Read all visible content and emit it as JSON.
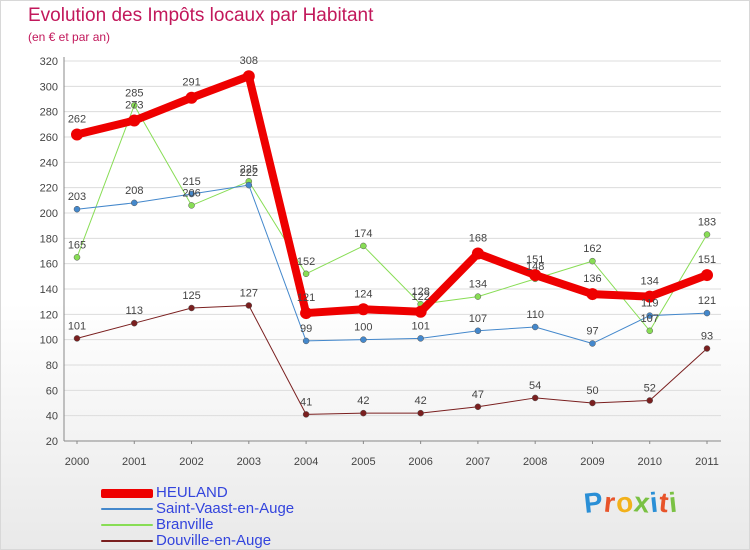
{
  "header": {
    "title": "Evolution des Impôts locaux par Habitant",
    "subtitle": "(en € et par an)"
  },
  "logo": {
    "letters": [
      "P",
      "r",
      "o",
      "x",
      "i",
      "t",
      "i"
    ],
    "colors": [
      "#2a8fd6",
      "#e8542a",
      "#f2b11b",
      "#7ac143",
      "#2a8fd6",
      "#e8542a",
      "#7ac143"
    ]
  },
  "chart_data": {
    "type": "line",
    "title": "Evolution des Impôts locaux par Habitant",
    "subtitle": "(en € et par an)",
    "xlabel": "",
    "ylabel": "",
    "ylim": [
      20,
      320
    ],
    "yticks": [
      20,
      40,
      60,
      80,
      100,
      120,
      140,
      160,
      180,
      200,
      220,
      240,
      260,
      280,
      300,
      320
    ],
    "grid": "horizontal",
    "legend_position": "bottom-left",
    "x": [
      "2000",
      "2001",
      "2002",
      "2003",
      "2004",
      "2005",
      "2006",
      "2007",
      "2008",
      "2009",
      "2010",
      "2011"
    ],
    "series": [
      {
        "name": "Douville-en-Auge",
        "color": "#7a1f1f",
        "width": 1,
        "marker": 3,
        "values": [
          101,
          113,
          125,
          127,
          41,
          42,
          42,
          47,
          54,
          50,
          52,
          93
        ]
      },
      {
        "name": "Branville",
        "color": "#88dd55",
        "width": 1,
        "marker": 3,
        "values": [
          165,
          285,
          206,
          225,
          152,
          174,
          128,
          134,
          148,
          162,
          107,
          183
        ]
      },
      {
        "name": "Saint-Vaast-en-Auge",
        "color": "#4488cc",
        "width": 1,
        "marker": 3,
        "values": [
          203,
          208,
          215,
          222,
          99,
          100,
          101,
          107,
          110,
          97,
          119,
          121
        ]
      },
      {
        "name": "HEULAND",
        "color": "#ee0000",
        "width": 8,
        "marker": 6,
        "values": [
          262,
          273,
          291,
          308,
          121,
          124,
          122,
          168,
          151,
          136,
          134,
          151
        ]
      }
    ],
    "legend_order": [
      "HEULAND",
      "Saint-Vaast-en-Auge",
      "Branville",
      "Douville-en-Auge"
    ]
  }
}
